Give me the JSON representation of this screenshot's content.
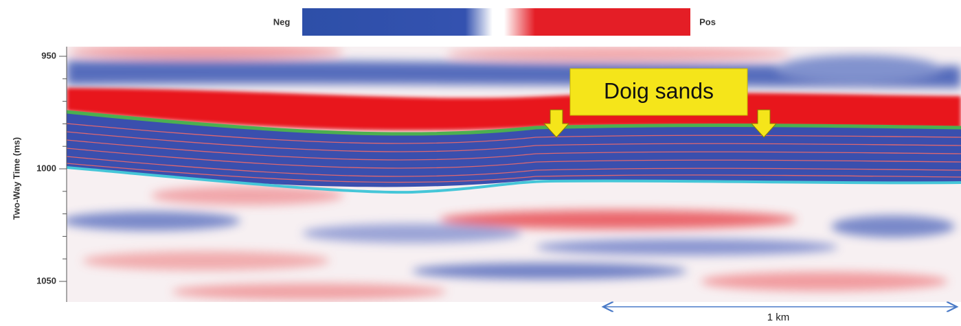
{
  "colorbar": {
    "neg_label": "Neg",
    "pos_label": "Pos"
  },
  "y_axis": {
    "label": "Two-Way Time (ms)",
    "ticks": [
      950,
      1000,
      1050
    ]
  },
  "annotation": "Doig sands",
  "scale_bar": "1 km"
}
